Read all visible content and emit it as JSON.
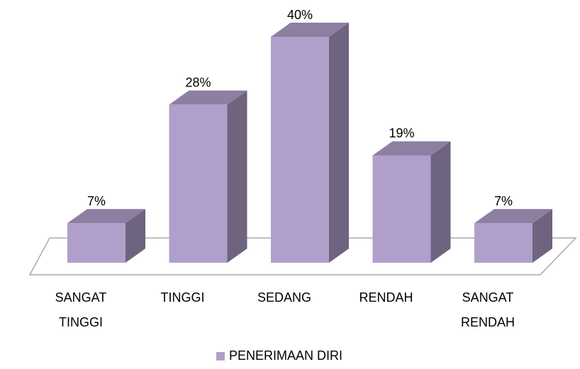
{
  "chart_data": {
    "type": "bar3d",
    "categories": [
      "SANGAT TINGGI",
      "TINGGI",
      "SEDANG",
      "RENDAH",
      "SANGAT RENDAH"
    ],
    "series": [
      {
        "name": "PENERIMAAN DIRI",
        "color": "#b09fca",
        "values": [
          7,
          28,
          40,
          19,
          7
        ],
        "value_labels": [
          "7%",
          "28%",
          "40%",
          "19%",
          "7%"
        ]
      }
    ]
  }
}
